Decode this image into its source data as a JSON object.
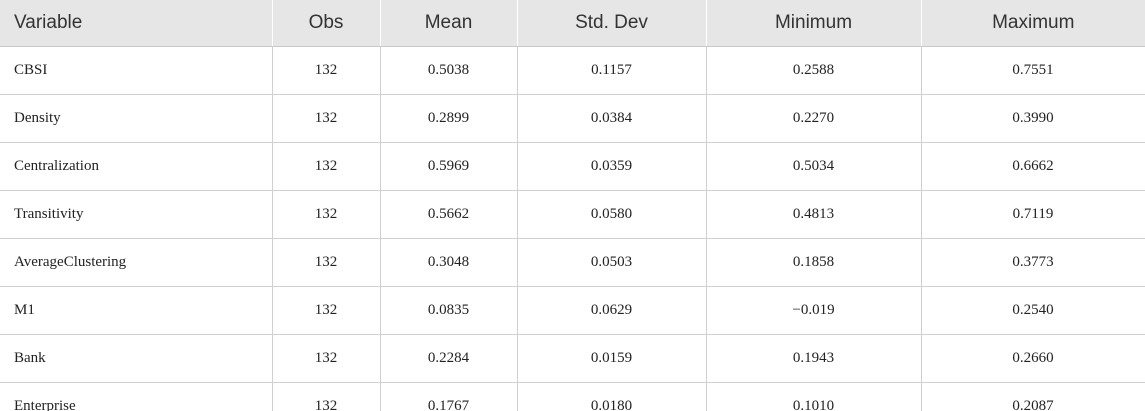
{
  "table": {
    "header": [
      "Variable",
      "Obs",
      "Mean",
      "Std. Dev",
      "Minimum",
      "Maximum"
    ],
    "rows": [
      [
        "CBSI",
        "132",
        "0.5038",
        "0.1157",
        "0.2588",
        "0.7551"
      ],
      [
        "Density",
        "132",
        "0.2899",
        "0.0384",
        "0.2270",
        "0.3990"
      ],
      [
        "Centralization",
        "132",
        "0.5969",
        "0.0359",
        "0.5034",
        "0.6662"
      ],
      [
        "Transitivity",
        "132",
        "0.5662",
        "0.0580",
        "0.4813",
        "0.7119"
      ],
      [
        "AverageClustering",
        "132",
        "0.3048",
        "0.0503",
        "0.1858",
        "0.3773"
      ],
      [
        "M1",
        "132",
        "0.0835",
        "0.0629",
        "−0.019",
        "0.2540"
      ],
      [
        "Bank",
        "132",
        "0.2284",
        "0.0159",
        "0.1943",
        "0.2660"
      ],
      [
        "Enterprise",
        "132",
        "0.1767",
        "0.0180",
        "0.1010",
        "0.2087"
      ]
    ]
  }
}
